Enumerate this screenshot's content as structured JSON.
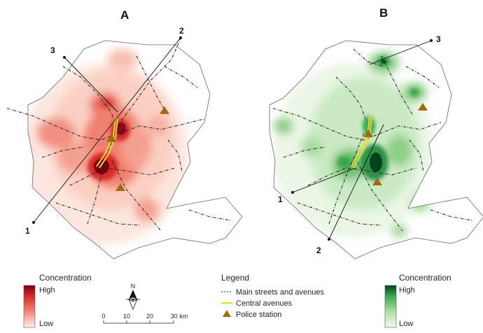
{
  "panels": [
    {
      "letter": "A",
      "transect_labels": [
        "1",
        "2",
        "3"
      ]
    },
    {
      "letter": "B",
      "transect_labels": [
        "1",
        "2",
        "3"
      ]
    }
  ],
  "legend": {
    "title": "Legend",
    "items": [
      {
        "label": "Main streets and avenues",
        "symbol": "dotted-line"
      },
      {
        "label": "Central avenues",
        "symbol": "yellow-line",
        "color": "#e8d83a"
      },
      {
        "label": "Police station",
        "symbol": "triangle",
        "color": "#a06a10"
      }
    ]
  },
  "scale_red": {
    "title": "Concentration",
    "high": "High",
    "low": "Low",
    "colors": [
      "#fff3ef",
      "#f08070",
      "#d62a2a",
      "#7a0010"
    ]
  },
  "scale_green": {
    "title": "Concentration",
    "high": "High",
    "low": "Low",
    "colors": [
      "#f3fbf2",
      "#a8dca0",
      "#3aa650",
      "#00441b"
    ]
  },
  "north_arrow": {
    "label": "N"
  },
  "scale_bar": {
    "ticks": [
      "0",
      "10",
      "20",
      "30 km"
    ]
  }
}
